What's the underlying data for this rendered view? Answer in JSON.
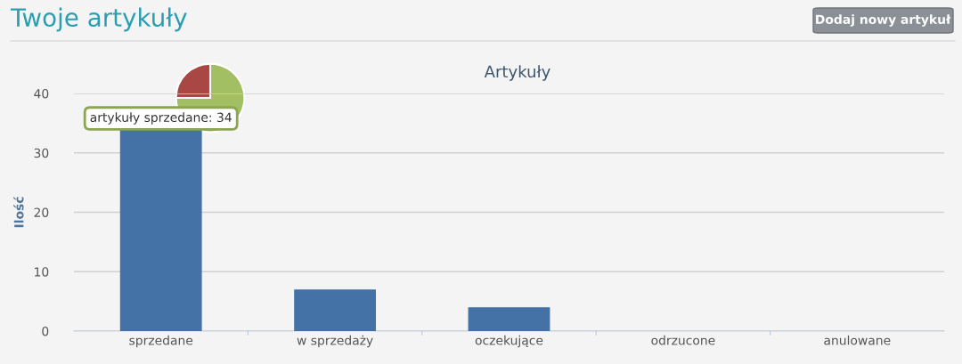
{
  "chart_data": [
    {
      "type": "bar",
      "title": "Artykuły",
      "ylabel": "Ilość",
      "categories": [
        "sprzedane",
        "w sprzedaży",
        "oczekujące",
        "odrzucone",
        "anulowane"
      ],
      "values": [
        34,
        7,
        4,
        0,
        0
      ],
      "color": "#4471a6",
      "ylim": [
        0,
        40
      ],
      "yticks": [
        0,
        10,
        20,
        30,
        40
      ],
      "grid": "y",
      "legend": false,
      "annotations": [
        "Twoje artykuły",
        "Dodaj nowy artykuł",
        {
          "text": "artykuły sprzedane: 34",
          "x": "sprzedane",
          "y": 34
        }
      ]
    },
    {
      "type": "pie",
      "categories": [
        null,
        null
      ],
      "values": [
        75,
        25
      ],
      "colors": [
        "#a3bf64",
        "#a84744"
      ],
      "legend": false
    }
  ]
}
